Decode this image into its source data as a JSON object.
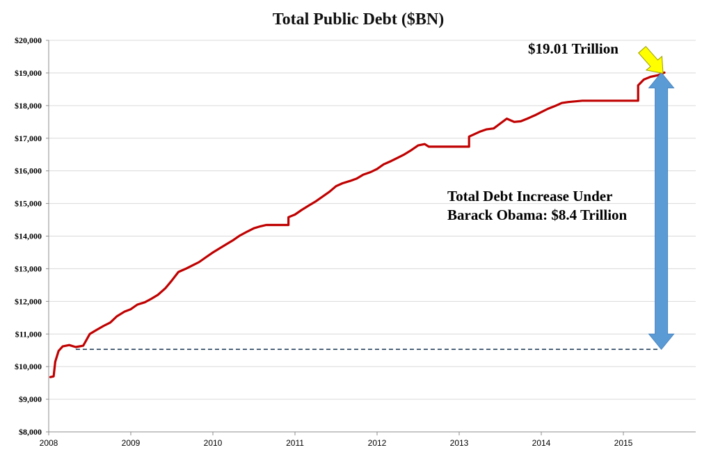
{
  "chart_data": {
    "type": "line",
    "title": "Total Public Debt ($BN)",
    "xlabel": "",
    "ylabel": "",
    "ylim": [
      8000,
      20000
    ],
    "xlim": [
      2008,
      2015.5
    ],
    "y_ticks": [
      8000,
      9000,
      10000,
      11000,
      12000,
      13000,
      14000,
      15000,
      16000,
      17000,
      18000,
      19000,
      20000
    ],
    "y_tick_labels": [
      "$8,000",
      "$9,000",
      "$10,000",
      "$11,000",
      "$12,000",
      "$13,000",
      "$14,000",
      "$15,000",
      "$16,000",
      "$17,000",
      "$18,000",
      "$19,000",
      "$20,000"
    ],
    "x_ticks": [
      2008,
      2009,
      2010,
      2011,
      2012,
      2013,
      2014,
      2015
    ],
    "x_tick_labels": [
      "2008",
      "2009",
      "2010",
      "2011",
      "2012",
      "2013",
      "2014",
      "2015"
    ],
    "grid": true,
    "series": [
      {
        "color": "#c00000",
        "points": [
          [
            2008.02,
            9680
          ],
          [
            2008.06,
            9700
          ],
          [
            2008.08,
            10150
          ],
          [
            2008.12,
            10480
          ],
          [
            2008.17,
            10620
          ],
          [
            2008.25,
            10660
          ],
          [
            2008.33,
            10600
          ],
          [
            2008.42,
            10640
          ],
          [
            2008.5,
            11000
          ],
          [
            2008.58,
            11120
          ],
          [
            2008.67,
            11250
          ],
          [
            2008.75,
            11350
          ],
          [
            2008.83,
            11540
          ],
          [
            2008.92,
            11680
          ],
          [
            2009.0,
            11760
          ],
          [
            2009.08,
            11900
          ],
          [
            2009.17,
            11970
          ],
          [
            2009.25,
            12080
          ],
          [
            2009.33,
            12200
          ],
          [
            2009.42,
            12400
          ],
          [
            2009.5,
            12640
          ],
          [
            2009.58,
            12900
          ],
          [
            2009.67,
            13000
          ],
          [
            2009.75,
            13100
          ],
          [
            2009.83,
            13200
          ],
          [
            2009.92,
            13360
          ],
          [
            2010.0,
            13500
          ],
          [
            2010.08,
            13620
          ],
          [
            2010.17,
            13760
          ],
          [
            2010.25,
            13880
          ],
          [
            2010.33,
            14020
          ],
          [
            2010.42,
            14140
          ],
          [
            2010.5,
            14240
          ],
          [
            2010.58,
            14300
          ],
          [
            2010.65,
            14340
          ],
          [
            2010.92,
            14340
          ],
          [
            2010.92,
            14580
          ],
          [
            2011.0,
            14660
          ],
          [
            2011.08,
            14800
          ],
          [
            2011.17,
            14940
          ],
          [
            2011.25,
            15060
          ],
          [
            2011.33,
            15200
          ],
          [
            2011.42,
            15360
          ],
          [
            2011.5,
            15530
          ],
          [
            2011.58,
            15620
          ],
          [
            2011.67,
            15690
          ],
          [
            2011.75,
            15760
          ],
          [
            2011.83,
            15880
          ],
          [
            2011.92,
            15960
          ],
          [
            2012.0,
            16060
          ],
          [
            2012.08,
            16200
          ],
          [
            2012.17,
            16300
          ],
          [
            2012.25,
            16400
          ],
          [
            2012.33,
            16500
          ],
          [
            2012.42,
            16640
          ],
          [
            2012.5,
            16780
          ],
          [
            2012.58,
            16820
          ],
          [
            2012.63,
            16740
          ],
          [
            2013.12,
            16740
          ],
          [
            2013.12,
            17050
          ],
          [
            2013.25,
            17200
          ],
          [
            2013.33,
            17270
          ],
          [
            2013.42,
            17300
          ],
          [
            2013.5,
            17450
          ],
          [
            2013.58,
            17600
          ],
          [
            2013.67,
            17500
          ],
          [
            2013.75,
            17520
          ],
          [
            2013.83,
            17600
          ],
          [
            2013.92,
            17700
          ],
          [
            2014.0,
            17800
          ],
          [
            2014.08,
            17900
          ],
          [
            2014.17,
            17990
          ],
          [
            2014.25,
            18080
          ],
          [
            2014.33,
            18110
          ],
          [
            2014.42,
            18130
          ],
          [
            2014.5,
            18150
          ],
          [
            2015.18,
            18150
          ],
          [
            2015.18,
            18620
          ],
          [
            2015.25,
            18800
          ],
          [
            2015.33,
            18880
          ],
          [
            2015.42,
            18930
          ],
          [
            2015.5,
            19010
          ]
        ]
      }
    ],
    "reference_line": {
      "y": 10530,
      "x_start": 2008.33,
      "x_end": 2015.42,
      "style": "dashed",
      "color": "#1f3b57"
    },
    "range_arrow": {
      "x": 2015.42,
      "y_low": 10530,
      "y_high": 19010,
      "color": "#5b9bd5"
    },
    "annotations": [
      {
        "text": "$19.01 Trillion",
        "target": [
          2015.5,
          19010
        ],
        "arrow_color": "#ffff00"
      },
      {
        "line1": "Total Debt Increase Under",
        "line2": "Barack Obama: $8.4 Trillion"
      }
    ]
  }
}
